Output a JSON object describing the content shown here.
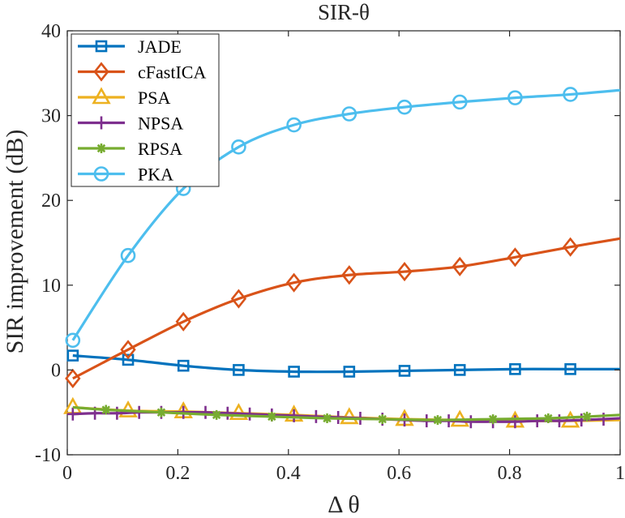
{
  "chart_data": {
    "type": "line",
    "title": "SIR-θ",
    "xlabel": "Δ θ",
    "ylabel": "SIR improvement (dB)",
    "xlim": [
      0,
      1
    ],
    "ylim": [
      -10,
      40
    ],
    "xticks": [
      0,
      0.2,
      0.4,
      0.6,
      0.8,
      1
    ],
    "xtick_labels": [
      "0",
      "0.2",
      "0.4",
      "0.6",
      "0.8",
      "1"
    ],
    "yticks": [
      -10,
      0,
      10,
      20,
      30,
      40
    ],
    "ytick_labels": [
      "-10",
      "0",
      "10",
      "20",
      "30",
      "40"
    ],
    "grid": false,
    "legend_position": "top-left",
    "series": [
      {
        "name": "JADE",
        "color": "#0072BD",
        "marker": "square",
        "x": [
          0.01,
          0.11,
          0.21,
          0.31,
          0.41,
          0.51,
          0.61,
          0.71,
          0.81,
          0.91,
          1.0
        ],
        "y": [
          1.7,
          1.2,
          0.5,
          0.0,
          -0.2,
          -0.2,
          -0.1,
          0.0,
          0.1,
          0.1,
          0.1
        ],
        "mx": [
          0.01,
          0.11,
          0.21,
          0.31,
          0.41,
          0.51,
          0.61,
          0.71,
          0.81,
          0.91
        ]
      },
      {
        "name": "cFastICA",
        "color": "#D95319",
        "marker": "diamond",
        "x": [
          0.01,
          0.11,
          0.21,
          0.31,
          0.41,
          0.51,
          0.61,
          0.71,
          0.81,
          0.91,
          1.0
        ],
        "y": [
          -1.0,
          2.4,
          5.7,
          8.4,
          10.3,
          11.2,
          11.6,
          12.2,
          13.3,
          14.5,
          15.5
        ],
        "mx": [
          0.01,
          0.11,
          0.21,
          0.31,
          0.41,
          0.51,
          0.61,
          0.71,
          0.81,
          0.91
        ]
      },
      {
        "name": "PSA",
        "color": "#EDB120",
        "marker": "triangle",
        "x": [
          0.01,
          0.11,
          0.21,
          0.31,
          0.41,
          0.51,
          0.61,
          0.71,
          0.81,
          0.91,
          1.0
        ],
        "y": [
          -4.4,
          -4.8,
          -4.9,
          -5.1,
          -5.3,
          -5.6,
          -5.8,
          -5.9,
          -6.0,
          -6.0,
          -5.9
        ],
        "mx": [
          0.01,
          0.11,
          0.21,
          0.31,
          0.41,
          0.51,
          0.61,
          0.71,
          0.81,
          0.91
        ]
      },
      {
        "name": "NPSA",
        "color": "#7E2F8E",
        "marker": "plus",
        "x": [
          0.01,
          0.05,
          0.09,
          0.13,
          0.17,
          0.21,
          0.25,
          0.29,
          0.33,
          0.37,
          0.41,
          0.45,
          0.49,
          0.53,
          0.57,
          0.61,
          0.65,
          0.69,
          0.73,
          0.77,
          0.81,
          0.85,
          0.89,
          0.93,
          0.97,
          1.0
        ],
        "y": [
          -5.2,
          -5.1,
          -5.1,
          -5.0,
          -5.0,
          -5.0,
          -5.0,
          -5.1,
          -5.2,
          -5.3,
          -5.4,
          -5.5,
          -5.6,
          -5.7,
          -5.8,
          -5.9,
          -6.0,
          -6.0,
          -6.1,
          -6.1,
          -6.1,
          -6.0,
          -6.0,
          -5.9,
          -5.8,
          -5.7
        ],
        "mx": [
          0.01,
          0.05,
          0.09,
          0.13,
          0.17,
          0.21,
          0.25,
          0.29,
          0.33,
          0.37,
          0.41,
          0.45,
          0.49,
          0.53,
          0.57,
          0.61,
          0.65,
          0.69,
          0.73,
          0.77,
          0.81,
          0.85,
          0.89,
          0.93,
          0.97
        ]
      },
      {
        "name": "RPSA",
        "color": "#77AC30",
        "marker": "asterisk",
        "x": [
          0.01,
          0.07,
          0.17,
          0.27,
          0.37,
          0.47,
          0.57,
          0.67,
          0.77,
          0.87,
          0.94,
          1.0
        ],
        "y": [
          -4.4,
          -4.7,
          -5.0,
          -5.3,
          -5.5,
          -5.7,
          -5.8,
          -5.9,
          -5.8,
          -5.7,
          -5.5,
          -5.3
        ],
        "mx": [
          0.07,
          0.17,
          0.27,
          0.37,
          0.47,
          0.57,
          0.67,
          0.77,
          0.87,
          0.94
        ]
      },
      {
        "name": "PKA",
        "color": "#4DBEEE",
        "marker": "circle",
        "x": [
          0.01,
          0.11,
          0.21,
          0.31,
          0.41,
          0.51,
          0.61,
          0.71,
          0.81,
          0.91,
          1.0
        ],
        "y": [
          3.5,
          13.5,
          21.4,
          26.3,
          28.9,
          30.2,
          31.0,
          31.6,
          32.1,
          32.5,
          33.0
        ],
        "mx": [
          0.01,
          0.11,
          0.21,
          0.31,
          0.41,
          0.51,
          0.61,
          0.71,
          0.81,
          0.91
        ]
      }
    ]
  }
}
